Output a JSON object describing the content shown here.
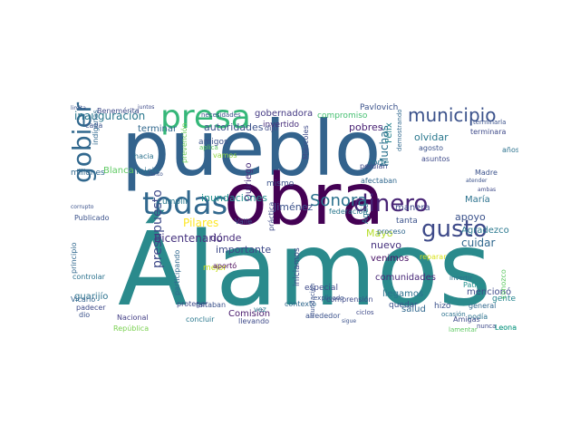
{
  "words": [
    {
      "text": "Álamos",
      "color": "#2a8a8c"
    },
    {
      "text": "pueblo",
      "color": "#33638d"
    },
    {
      "text": "obra",
      "color": "#440154"
    },
    {
      "text": "todas",
      "color": "#31688e"
    },
    {
      "text": "presa",
      "color": "#35b779"
    },
    {
      "text": "gobierno",
      "color": "#31688e"
    },
    {
      "text": "cultura",
      "color": "#238a8d"
    },
    {
      "text": "municipio",
      "color": "#3b528b"
    },
    {
      "text": "dinero",
      "color": "#482475"
    },
    {
      "text": "gusto",
      "color": "#3e4a89"
    },
    {
      "text": "Sonora",
      "color": "#2c728e"
    },
    {
      "text": "presupuesto",
      "color": "#3e4a89"
    },
    {
      "text": "inauguración",
      "color": "#2a788e"
    },
    {
      "text": "inundaciones",
      "color": "#21908d"
    },
    {
      "text": "Bicentenario",
      "color": "#46337f"
    },
    {
      "text": "Muchas",
      "color": "#2c728e"
    },
    {
      "text": "olvidar",
      "color": "#2a788e"
    },
    {
      "text": "apoyo",
      "color": "#3b528b"
    },
    {
      "text": "cuidar",
      "color": "#31688e"
    },
    {
      "text": "Mayo",
      "color": "#b5de2b"
    },
    {
      "text": "Pilares",
      "color": "#fde725"
    },
    {
      "text": "importante",
      "color": "#3e4a89"
    },
    {
      "text": "dónde",
      "color": "#472d7b"
    },
    {
      "text": "autoridades",
      "color": "#3b528b"
    },
    {
      "text": "gobernadora",
      "color": "#443983"
    },
    {
      "text": "comunidades",
      "color": "#482878"
    },
    {
      "text": "Agradezco",
      "color": "#2a788e"
    },
    {
      "text": "nuevo",
      "color": "#46327e"
    },
    {
      "text": "venimos",
      "color": "#471164"
    },
    {
      "text": "pobres",
      "color": "#482173"
    },
    {
      "text": "Jiménez",
      "color": "#3b528b"
    },
    {
      "text": "Quiriego",
      "color": "#472d7b"
    },
    {
      "text": "Comisión",
      "color": "#481a6c"
    },
    {
      "text": "llegamos",
      "color": "#2c728e"
    },
    {
      "text": "salud",
      "color": "#31688e"
    },
    {
      "text": "inicio",
      "color": "#2c728e"
    },
    {
      "text": "Blanca",
      "color": "#5ec962"
    },
    {
      "text": "guarijío",
      "color": "#2c728e"
    },
    {
      "text": "Pavlovich",
      "color": "#3b528b"
    },
    {
      "text": "Benemérita",
      "color": "#3e4a89"
    },
    {
      "text": "terminar",
      "color": "#31688e"
    },
    {
      "text": "compromiso",
      "color": "#44bf70"
    },
    {
      "text": "invertido",
      "color": "#472d7b"
    },
    {
      "text": "Félix",
      "color": "#26828e"
    },
    {
      "text": "corte",
      "color": "#2a788e"
    },
    {
      "text": "manera",
      "color": "#3e4a89"
    },
    {
      "text": "María",
      "color": "#2c728e"
    },
    {
      "text": "mencionó",
      "color": "#3e4a89"
    },
    {
      "text": "gente",
      "color": "#25858e"
    },
    {
      "text": "Leona",
      "color": "#1f9e89"
    },
    {
      "text": "cumplir",
      "color": "#2a788e"
    },
    {
      "text": "amigos",
      "color": "#3b528b"
    },
    {
      "text": "mejor",
      "color": "#cae11f"
    },
    {
      "text": "Vicario",
      "color": "#33638d"
    },
    {
      "text": "Nacional",
      "color": "#433e85"
    },
    {
      "text": "República",
      "color": "#7ad151"
    },
    {
      "text": "Publicado",
      "color": "#3b528b"
    },
    {
      "text": "millones",
      "color": "#31688e"
    },
    {
      "text": "hacia",
      "color": "#2c728e"
    },
    {
      "text": "perdían",
      "color": "#3e4a89"
    },
    {
      "text": "afectaban",
      "color": "#31688e"
    },
    {
      "text": "tanta",
      "color": "#3b528b"
    },
    {
      "text": "federación",
      "color": "#2a788e"
    },
    {
      "text": "especial",
      "color": "#3e4a89"
    },
    {
      "text": "construcción",
      "color": "#35608d"
    },
    {
      "text": "comprensión",
      "color": "#3e4a89"
    },
    {
      "text": "quedar",
      "color": "#3b528b"
    },
    {
      "text": "hizo",
      "color": "#3b528b"
    },
    {
      "text": "podía",
      "color": "#2c728e"
    },
    {
      "text": "general",
      "color": "#31688e"
    },
    {
      "text": "Patria",
      "color": "#21918c"
    },
    {
      "text": "Amigas",
      "color": "#3e4a89"
    },
    {
      "text": "faltaban",
      "color": "#3b528b"
    },
    {
      "text": "concluir",
      "color": "#2a788e"
    },
    {
      "text": "llevando",
      "color": "#3e4a89"
    },
    {
      "text": "vez",
      "color": "#2a788e"
    },
    {
      "text": "dio",
      "color": "#3b528b"
    },
    {
      "text": "padecer",
      "color": "#3e4a89"
    },
    {
      "text": "aportó",
      "color": "#440154"
    },
    {
      "text": "Valle",
      "color": "#3b528b"
    },
    {
      "text": "proteger",
      "color": "#3e4a89"
    },
    {
      "text": "participando",
      "color": "#31688e"
    },
    {
      "text": "controlar",
      "color": "#2c728e"
    },
    {
      "text": "principio",
      "color": "#31688e"
    },
    {
      "text": "iniciamos",
      "color": "#3e4a89"
    },
    {
      "text": "contexto",
      "color": "#31688e"
    },
    {
      "text": "alrededor",
      "color": "#3b528b"
    },
    {
      "text": "proceso",
      "color": "#31688e"
    },
    {
      "text": "Agua",
      "color": "#2a788e"
    },
    {
      "text": "práctica",
      "color": "#3e4a89"
    },
    {
      "text": "mismo",
      "color": "#3b528b"
    },
    {
      "text": "dijo",
      "color": "#3e4a89"
    },
    {
      "text": "Miércoles",
      "color": "#3e4a89"
    },
    {
      "text": "indígenas",
      "color": "#31688e"
    },
    {
      "text": "cada",
      "color": "#3b528b"
    },
    {
      "text": "años",
      "color": "#2c728e"
    },
    {
      "text": "Madre",
      "color": "#3b528b"
    },
    {
      "text": "conozco",
      "color": "#5ec962"
    },
    {
      "text": "terminara",
      "color": "#3e4a89"
    },
    {
      "text": "agosto",
      "color": "#3b528b"
    },
    {
      "text": "asuntos",
      "color": "#3e4a89"
    },
    {
      "text": "demostrando",
      "color": "#31688e"
    },
    {
      "text": "explicado",
      "color": "#3b528b"
    },
    {
      "text": "vamos",
      "color": "#8fd744"
    },
    {
      "text": "aplica",
      "color": "#5ec962"
    },
    {
      "text": "necesidades",
      "color": "#3b528b"
    },
    {
      "text": "prevención",
      "color": "#6ece58"
    },
    {
      "text": "inundación",
      "color": "#3b528b"
    },
    {
      "text": "ocasión",
      "color": "#2c728e"
    },
    {
      "text": "lamentar",
      "color": "#5ec962"
    },
    {
      "text": "nunca",
      "color": "#3e4a89"
    },
    {
      "text": "invertir",
      "color": "#2c728e"
    },
    {
      "text": "terminarla",
      "color": "#3b528b"
    },
    {
      "text": "reparar",
      "color": "#d8e219"
    },
    {
      "text": "limita",
      "color": "#3b528b"
    },
    {
      "text": "juntos",
      "color": "#3e4a89"
    },
    {
      "text": "corrupto",
      "color": "#3b528b"
    },
    {
      "text": "atender",
      "color": "#3b528b"
    },
    {
      "text": "tanto",
      "color": "#3b528b"
    },
    {
      "text": "ambas",
      "color": "#3e4a89"
    },
    {
      "text": "ciclos",
      "color": "#3e4a89"
    },
    {
      "text": "sigue",
      "color": "#3b528b"
    },
    {
      "text": "Leona",
      "color": "#1f9e89"
    }
  ]
}
